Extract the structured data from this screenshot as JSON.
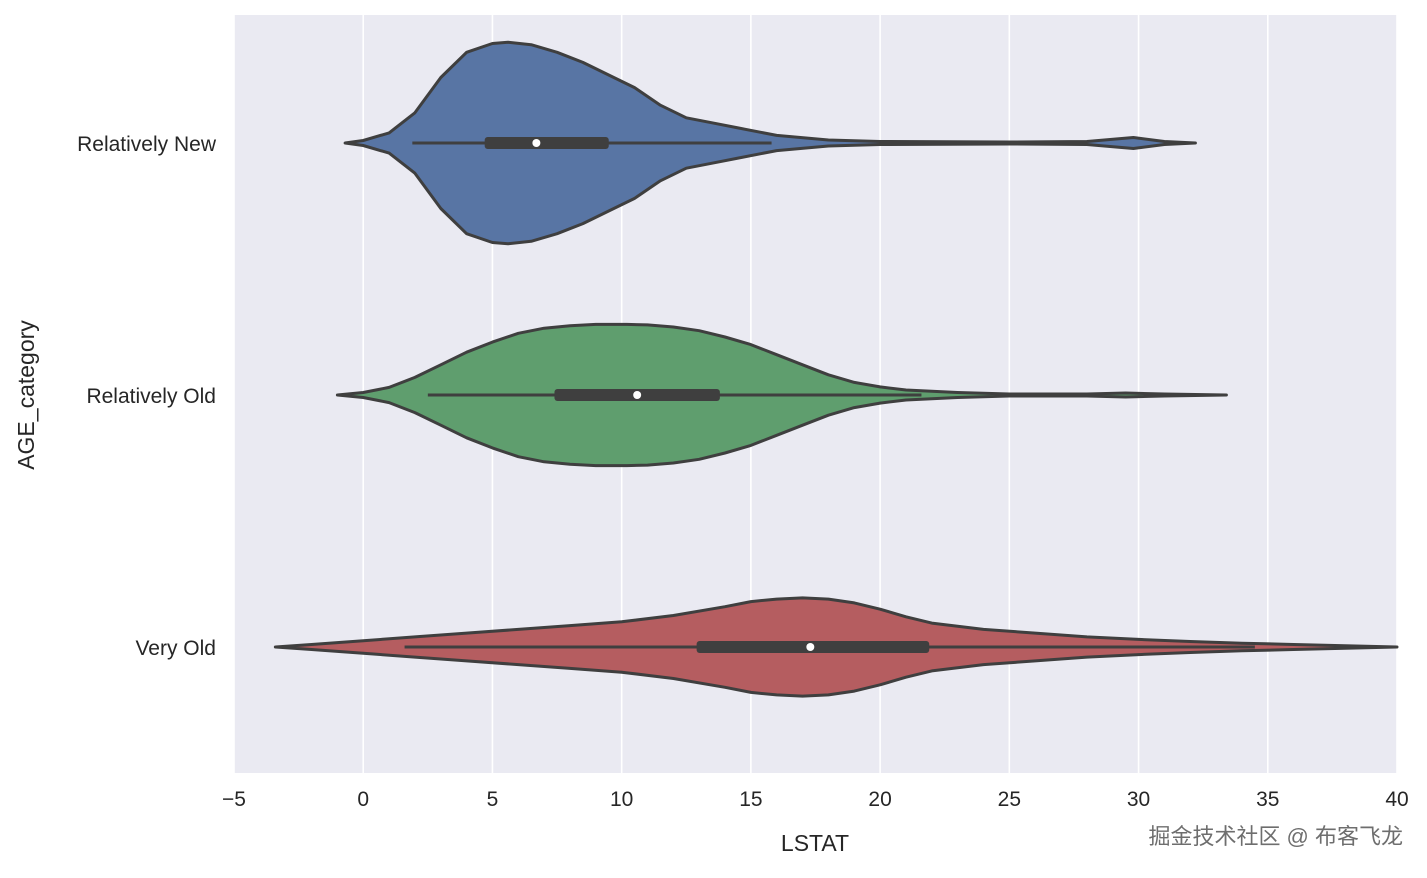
{
  "chart_data": {
    "type": "violin",
    "orientation": "horizontal",
    "xlabel": "LSTAT",
    "ylabel": "AGE_category",
    "xlim": [
      -5,
      40
    ],
    "xticks": [
      -5,
      0,
      5,
      10,
      15,
      20,
      25,
      30,
      35,
      40
    ],
    "xtick_labels": [
      "−5",
      "0",
      "5",
      "10",
      "15",
      "20",
      "25",
      "30",
      "35",
      "40"
    ],
    "grid": "vertical lines",
    "background": "#eaeaf2",
    "categories": [
      "Relatively New",
      "Relatively Old",
      "Very Old"
    ],
    "series": [
      {
        "category": "Relatively New",
        "color": "#5875a4",
        "min": -0.7,
        "max": 32.2,
        "whisker_low": 1.9,
        "q1": 4.7,
        "median": 6.7,
        "q3": 9.5,
        "whisker_high": 15.8,
        "density_profile": [
          [
            -0.7,
            0
          ],
          [
            0,
            0.01
          ],
          [
            1,
            0.04
          ],
          [
            2,
            0.12
          ],
          [
            3,
            0.26
          ],
          [
            4,
            0.36
          ],
          [
            5,
            0.395
          ],
          [
            5.6,
            0.4
          ],
          [
            6.5,
            0.39
          ],
          [
            7.5,
            0.36
          ],
          [
            8.5,
            0.32
          ],
          [
            9.5,
            0.27
          ],
          [
            10.5,
            0.22
          ],
          [
            11.5,
            0.15
          ],
          [
            12.5,
            0.1
          ],
          [
            13.5,
            0.08
          ],
          [
            14.5,
            0.06
          ],
          [
            16,
            0.03
          ],
          [
            18,
            0.012
          ],
          [
            20,
            0.006
          ],
          [
            25,
            0.004
          ],
          [
            28,
            0.006
          ],
          [
            29.8,
            0.022
          ],
          [
            31,
            0.006
          ],
          [
            32.2,
            0
          ]
        ]
      },
      {
        "category": "Relatively Old",
        "color": "#5f9e6e",
        "min": -1.0,
        "max": 33.4,
        "whisker_low": 2.5,
        "q1": 7.4,
        "median": 10.6,
        "q3": 13.8,
        "whisker_high": 21.6,
        "density_profile": [
          [
            -1,
            0
          ],
          [
            0,
            0.01
          ],
          [
            1,
            0.03
          ],
          [
            2,
            0.07
          ],
          [
            3,
            0.12
          ],
          [
            4,
            0.17
          ],
          [
            5,
            0.21
          ],
          [
            6,
            0.245
          ],
          [
            7,
            0.265
          ],
          [
            8,
            0.275
          ],
          [
            9,
            0.28
          ],
          [
            10.2,
            0.28
          ],
          [
            11,
            0.278
          ],
          [
            12,
            0.27
          ],
          [
            13,
            0.255
          ],
          [
            14,
            0.23
          ],
          [
            15,
            0.2
          ],
          [
            16,
            0.16
          ],
          [
            17,
            0.12
          ],
          [
            18,
            0.08
          ],
          [
            19,
            0.05
          ],
          [
            20,
            0.032
          ],
          [
            21,
            0.02
          ],
          [
            23,
            0.01
          ],
          [
            25,
            0.004
          ],
          [
            28,
            0.004
          ],
          [
            29.5,
            0.008
          ],
          [
            31,
            0.004
          ],
          [
            33.4,
            0
          ]
        ]
      },
      {
        "category": "Very Old",
        "color": "#b55d60",
        "min": -3.4,
        "max": 40,
        "whisker_low": 1.6,
        "q1": 12.9,
        "median": 17.3,
        "q3": 21.9,
        "whisker_high": 34.5,
        "density_profile": [
          [
            -3.4,
            0
          ],
          [
            -2,
            0.01
          ],
          [
            0,
            0.025
          ],
          [
            2,
            0.04
          ],
          [
            4,
            0.055
          ],
          [
            6,
            0.07
          ],
          [
            8,
            0.085
          ],
          [
            10,
            0.1
          ],
          [
            12,
            0.125
          ],
          [
            14,
            0.16
          ],
          [
            15,
            0.18
          ],
          [
            16,
            0.19
          ],
          [
            17,
            0.195
          ],
          [
            18,
            0.19
          ],
          [
            19,
            0.175
          ],
          [
            20,
            0.15
          ],
          [
            21,
            0.12
          ],
          [
            22,
            0.095
          ],
          [
            24,
            0.07
          ],
          [
            26,
            0.055
          ],
          [
            28,
            0.04
          ],
          [
            30,
            0.03
          ],
          [
            32,
            0.022
          ],
          [
            34,
            0.015
          ],
          [
            36,
            0.01
          ],
          [
            38,
            0.005
          ],
          [
            40,
            0
          ]
        ]
      }
    ]
  },
  "watermark": "掘金技术社区 @ 布客飞龙"
}
